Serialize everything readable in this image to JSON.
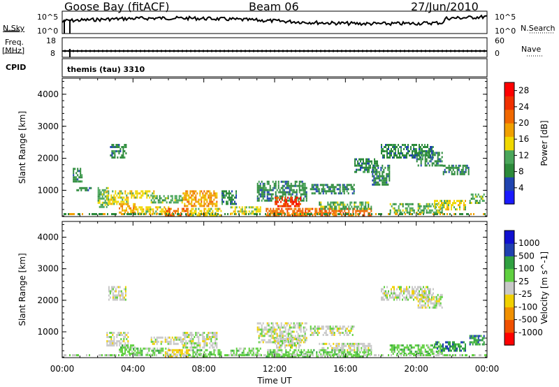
{
  "header": {
    "station": "Goose Bay (fitACF)",
    "beam": "Beam 06",
    "date": "27/Jun/2010"
  },
  "noise_panel": {
    "left_label": "N.Sky",
    "right_label": "N.Search",
    "left_ticks": [
      "10^5",
      "10^0"
    ],
    "right_ticks": [
      "10^5",
      "10^0"
    ]
  },
  "freq_panel": {
    "left_label_line1": "Freq.",
    "left_label_line2": "[MHz]",
    "right_label": "Nave",
    "left_ticks": [
      "18",
      "8"
    ],
    "right_ticks": [
      "60",
      "0"
    ]
  },
  "cpid": {
    "label": "CPID",
    "program": "themis (tau) 3310"
  },
  "colors": {
    "power_scale": [
      "#1a1aff",
      "#2044b0",
      "#2c8a3a",
      "#4aa65a",
      "#f0d800",
      "#f0a000",
      "#f06800",
      "#f03000",
      "#ff0000"
    ],
    "velocity_scale": [
      "#1010d0",
      "#2040b0",
      "#30a040",
      "#60d040",
      "#c8c8c8",
      "#f0d000",
      "#f09000",
      "#f05000",
      "#ff0000"
    ]
  },
  "chart_data": [
    {
      "type": "heatmap",
      "name": "power",
      "ylabel": "Slant Range [km]",
      "yticks": [
        "1000",
        "2000",
        "3000",
        "4000"
      ],
      "ylim": [
        180,
        4500
      ],
      "xlim": [
        0,
        24
      ],
      "xticks": [
        "00:00",
        "04:00",
        "08:00",
        "12:00",
        "16:00",
        "20:00",
        "00:00"
      ],
      "colorbar": {
        "label": "Power [dB]",
        "ticks": [
          "4",
          "8",
          "12",
          "16",
          "20",
          "24",
          "28"
        ],
        "range": [
          0,
          30
        ]
      },
      "regions": [
        {
          "t": [
            0.6,
            1.1
          ],
          "r": [
            1300,
            1700
          ],
          "v": 6
        },
        {
          "t": [
            0.8,
            1.6
          ],
          "r": [
            1000,
            1100
          ],
          "v": 6
        },
        {
          "t": [
            2.0,
            2.6
          ],
          "r": [
            500,
            1100
          ],
          "v": 10
        },
        {
          "t": [
            2.5,
            3.7
          ],
          "r": [
            600,
            1000
          ],
          "v": 16
        },
        {
          "t": [
            2.7,
            3.6
          ],
          "r": [
            2000,
            2450
          ],
          "v": 6
        },
        {
          "t": [
            3.2,
            4.1
          ],
          "r": [
            300,
            600
          ],
          "v": 20
        },
        {
          "t": [
            3.8,
            5.2
          ],
          "r": [
            750,
            1000
          ],
          "v": 14
        },
        {
          "t": [
            4.0,
            6.0
          ],
          "r": [
            250,
            500
          ],
          "v": 14
        },
        {
          "t": [
            5.0,
            6.8
          ],
          "r": [
            600,
            850
          ],
          "v": 10
        },
        {
          "t": [
            5.8,
            7.2
          ],
          "r": [
            250,
            450
          ],
          "v": 24
        },
        {
          "t": [
            6.8,
            8.7
          ],
          "r": [
            500,
            1000
          ],
          "v": 18
        },
        {
          "t": [
            7.2,
            9.0
          ],
          "r": [
            250,
            450
          ],
          "v": 14
        },
        {
          "t": [
            9.0,
            9.8
          ],
          "r": [
            550,
            1000
          ],
          "v": 8
        },
        {
          "t": [
            9.5,
            11.2
          ],
          "r": [
            300,
            500
          ],
          "v": 14
        },
        {
          "t": [
            11.0,
            13.8
          ],
          "r": [
            700,
            1300
          ],
          "v": 8
        },
        {
          "t": [
            12.0,
            13.5
          ],
          "r": [
            500,
            800
          ],
          "v": 26
        },
        {
          "t": [
            11.5,
            17.5
          ],
          "r": [
            250,
            450
          ],
          "v": 22
        },
        {
          "t": [
            14.0,
            16.5
          ],
          "r": [
            900,
            1200
          ],
          "v": 7
        },
        {
          "t": [
            14.5,
            17.5
          ],
          "r": [
            450,
            650
          ],
          "v": 12
        },
        {
          "t": [
            16.5,
            17.8
          ],
          "r": [
            1600,
            2000
          ],
          "v": 6
        },
        {
          "t": [
            17.5,
            18.5
          ],
          "r": [
            1200,
            1800
          ],
          "v": 7
        },
        {
          "t": [
            18.0,
            21.0
          ],
          "r": [
            2000,
            2450
          ],
          "v": 8
        },
        {
          "t": [
            18.5,
            21.5
          ],
          "r": [
            300,
            600
          ],
          "v": 12
        },
        {
          "t": [
            20.0,
            21.5
          ],
          "r": [
            1800,
            2200
          ],
          "v": 6
        },
        {
          "t": [
            21.5,
            23.0
          ],
          "r": [
            1500,
            1800
          ],
          "v": 6
        },
        {
          "t": [
            21.0,
            22.8
          ],
          "r": [
            400,
            700
          ],
          "v": 16
        },
        {
          "t": [
            23.0,
            23.8
          ],
          "r": [
            600,
            900
          ],
          "v": 12
        }
      ]
    },
    {
      "type": "heatmap",
      "name": "velocity",
      "ylabel": "Slant Range [km]",
      "xlabel": "Time UT",
      "yticks": [
        "1000",
        "2000",
        "3000",
        "4000"
      ],
      "ylim": [
        180,
        4500
      ],
      "xlim": [
        0,
        24
      ],
      "xticks": [
        "00:00",
        "04:00",
        "08:00",
        "12:00",
        "16:00",
        "20:00",
        "00:00"
      ],
      "colorbar": {
        "label": "Velocity [m s^-1]",
        "ticks": [
          "1000",
          "500",
          "100",
          "25",
          "-25",
          "-100",
          "-500",
          "-1000"
        ]
      },
      "regions": [
        {
          "t": [
            2.6,
            3.6
          ],
          "r": [
            2000,
            2450
          ],
          "c": 4
        },
        {
          "t": [
            2.5,
            3.7
          ],
          "r": [
            600,
            1000
          ],
          "c": 4
        },
        {
          "t": [
            3.2,
            4.1
          ],
          "r": [
            300,
            600
          ],
          "c": 3
        },
        {
          "t": [
            4.0,
            6.0
          ],
          "r": [
            250,
            500
          ],
          "c": 3
        },
        {
          "t": [
            5.0,
            6.8
          ],
          "r": [
            600,
            850
          ],
          "c": 4
        },
        {
          "t": [
            5.8,
            7.2
          ],
          "r": [
            250,
            450
          ],
          "c": 5
        },
        {
          "t": [
            6.8,
            8.7
          ],
          "r": [
            500,
            1000
          ],
          "c": 4
        },
        {
          "t": [
            7.2,
            9.0
          ],
          "r": [
            250,
            450
          ],
          "c": 3
        },
        {
          "t": [
            9.5,
            11.2
          ],
          "r": [
            300,
            500
          ],
          "c": 3
        },
        {
          "t": [
            11.0,
            13.8
          ],
          "r": [
            700,
            1300
          ],
          "c": 4
        },
        {
          "t": [
            12.0,
            13.5
          ],
          "r": [
            500,
            800
          ],
          "c": 4
        },
        {
          "t": [
            11.5,
            17.5
          ],
          "r": [
            250,
            450
          ],
          "c": 3
        },
        {
          "t": [
            14.0,
            16.5
          ],
          "r": [
            900,
            1200
          ],
          "c": 4
        },
        {
          "t": [
            14.5,
            17.5
          ],
          "r": [
            450,
            650
          ],
          "c": 4
        },
        {
          "t": [
            18.0,
            21.0
          ],
          "r": [
            2000,
            2450
          ],
          "c": 4
        },
        {
          "t": [
            18.5,
            21.5
          ],
          "r": [
            300,
            600
          ],
          "c": 3
        },
        {
          "t": [
            20.0,
            21.5
          ],
          "r": [
            1800,
            2200
          ],
          "c": 4
        },
        {
          "t": [
            21.0,
            22.8
          ],
          "r": [
            400,
            700
          ],
          "c": 2
        },
        {
          "t": [
            23.0,
            23.8
          ],
          "r": [
            600,
            900
          ],
          "c": 2
        }
      ]
    }
  ]
}
